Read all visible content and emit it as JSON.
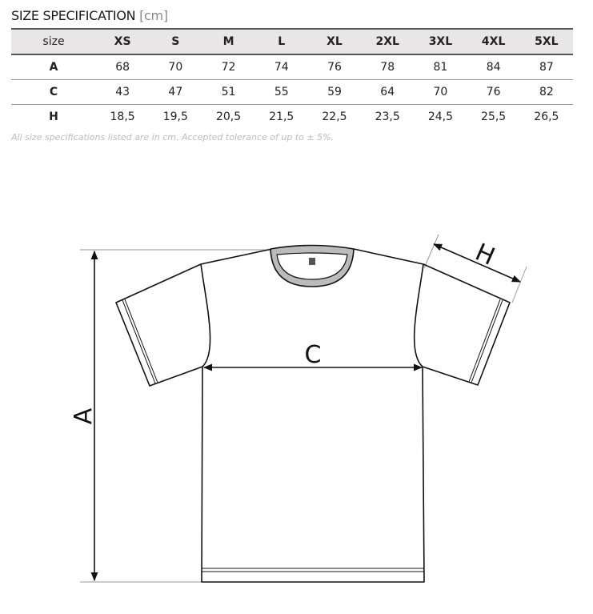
{
  "title": {
    "main": "SIZE SPECIFICATION",
    "unit": "[cm]"
  },
  "table": {
    "headers": [
      "size",
      "XS",
      "S",
      "M",
      "L",
      "XL",
      "2XL",
      "3XL",
      "4XL",
      "5XL"
    ],
    "rows": [
      [
        "A",
        "68",
        "70",
        "72",
        "74",
        "76",
        "78",
        "81",
        "84",
        "87"
      ],
      [
        "C",
        "43",
        "47",
        "51",
        "55",
        "59",
        "64",
        "70",
        "76",
        "82"
      ],
      [
        "H",
        "18,5",
        "19,5",
        "20,5",
        "21,5",
        "22,5",
        "23,5",
        "24,5",
        "25,5",
        "26,5"
      ]
    ]
  },
  "note": "All size specifications listed are in cm. Accepted tolerance of up to ± 5%.",
  "diagram": {
    "label_a": "A",
    "label_c": "C",
    "label_h": "H"
  }
}
